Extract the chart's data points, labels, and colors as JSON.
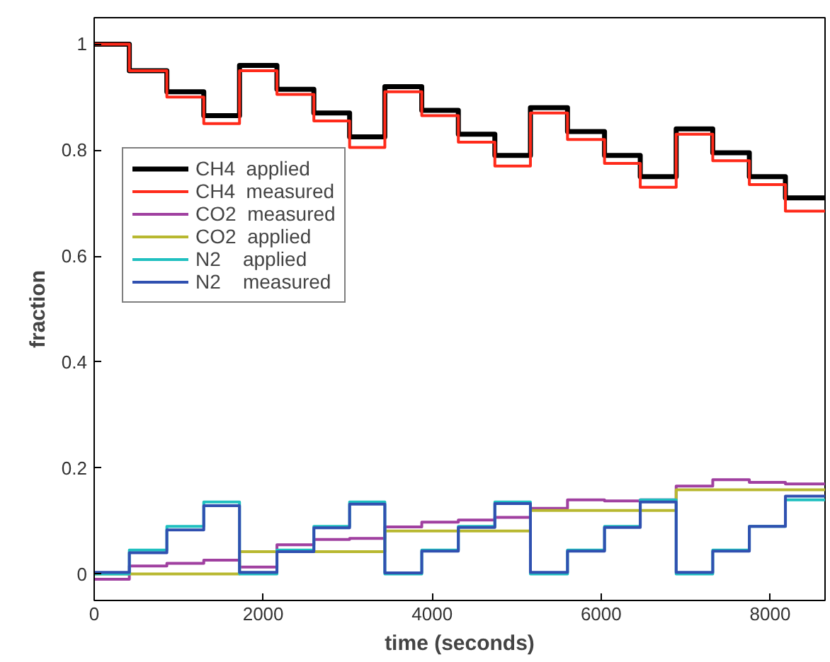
{
  "chart_data": {
    "type": "step",
    "xlabel": "time (seconds)",
    "ylabel": "fraction",
    "x": [
      0,
      416,
      860,
      1297,
      1720,
      2163,
      2600,
      3023,
      3440,
      3877,
      4310,
      4742,
      5163,
      5602,
      6040,
      6463,
      6888,
      7321,
      7754,
      8181,
      8650
    ],
    "series": [
      {
        "name": "CH4  applied",
        "color": "#000000",
        "values": [
          1.0,
          0.95,
          0.91,
          0.865,
          0.96,
          0.915,
          0.87,
          0.825,
          0.92,
          0.875,
          0.83,
          0.79,
          0.88,
          0.835,
          0.79,
          0.75,
          0.84,
          0.795,
          0.75,
          0.71,
          0.71
        ]
      },
      {
        "name": "CH4  measured",
        "color": "#ff2a1a",
        "values": [
          1.0,
          0.95,
          0.9,
          0.85,
          0.95,
          0.905,
          0.855,
          0.805,
          0.91,
          0.865,
          0.815,
          0.77,
          0.87,
          0.82,
          0.775,
          0.73,
          0.83,
          0.78,
          0.735,
          0.685,
          0.685
        ]
      },
      {
        "name": "CO2  measured",
        "color": "#a040a0",
        "values": [
          -0.01,
          0.015,
          0.02,
          0.026,
          0.013,
          0.055,
          0.065,
          0.067,
          0.089,
          0.098,
          0.102,
          0.107,
          0.124,
          0.14,
          0.138,
          0.14,
          0.166,
          0.178,
          0.173,
          0.17,
          0.17
        ]
      },
      {
        "name": "CO2  applied",
        "color": "#b8b830",
        "values": [
          0,
          0,
          0,
          0,
          0.042,
          0.042,
          0.042,
          0.042,
          0.081,
          0.081,
          0.081,
          0.081,
          0.12,
          0.12,
          0.12,
          0.12,
          0.159,
          0.159,
          0.159,
          0.159,
          0.159
        ]
      },
      {
        "name": "N2    applied",
        "color": "#20c0c0",
        "values": [
          0,
          0.045,
          0.09,
          0.136,
          0,
          0.045,
          0.09,
          0.136,
          0,
          0.045,
          0.09,
          0.136,
          0,
          0.045,
          0.09,
          0.14,
          0,
          0.045,
          0.09,
          0.14,
          0.14
        ]
      },
      {
        "name": "N2    measured",
        "color": "#3050b0",
        "values": [
          0.003,
          0.04,
          0.083,
          0.129,
          0.003,
          0.042,
          0.087,
          0.132,
          0.002,
          0.043,
          0.088,
          0.133,
          0.003,
          0.043,
          0.088,
          0.136,
          0.003,
          0.043,
          0.09,
          0.147,
          0.147
        ]
      }
    ],
    "xlim": [
      0,
      8650
    ],
    "ylim": [
      -0.05,
      1.05
    ],
    "xticks": [
      0,
      2000,
      4000,
      6000,
      8000
    ],
    "yticks": [
      0,
      0.2,
      0.4,
      0.6,
      0.8,
      1
    ],
    "legend": "left",
    "grid": false,
    "line_style": "solid",
    "marker": "none"
  }
}
